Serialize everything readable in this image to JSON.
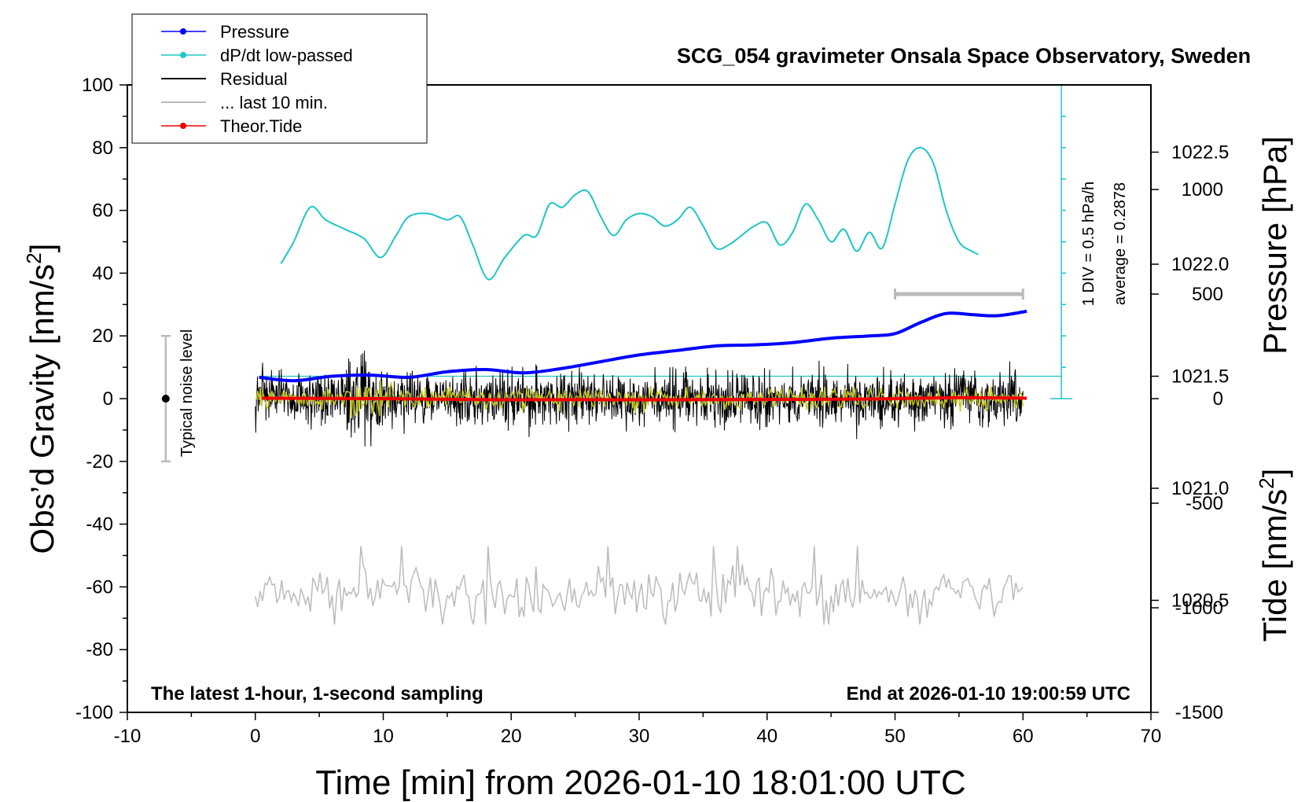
{
  "chart_data": {
    "type": "line",
    "title": "SCG_054 gravimeter Onsala Space Observatory, Sweden",
    "xlabel": "Time [min] from 2026-01-10 18:01:00 UTC",
    "ylabel_left_main": "Obs’d Gravity [nm/s",
    "ylabel_left_sup": "2",
    "ylabel_left_close": "]",
    "ylabel_right_pressure": "Pressure [hPa]",
    "ylabel_right_tide_main": "Tide [nm/s",
    "ylabel_right_tide_sup": "2",
    "ylabel_right_tide_close": "]",
    "xlim": [
      -10,
      70
    ],
    "ylim_left": [
      -100,
      100
    ],
    "ylim_pressure": [
      1020.0,
      1022.8
    ],
    "ylim_tide": [
      -1500,
      1500
    ],
    "x_ticks": [
      -10,
      0,
      10,
      20,
      30,
      40,
      50,
      60,
      70
    ],
    "x_tick_labels": [
      "-10",
      "0",
      "10",
      "20",
      "30",
      "40",
      "50",
      "60",
      "70"
    ],
    "y_left_ticks": [
      -100,
      -80,
      -60,
      -40,
      -20,
      0,
      20,
      40,
      60,
      80,
      100
    ],
    "y_left_tick_labels": [
      "-100",
      "-80",
      "-60",
      "-40",
      "-20",
      "0",
      "20",
      "40",
      "60",
      "80",
      "100"
    ],
    "y_pressure_ticks": [
      1020.5,
      1021.0,
      1021.5,
      1022.0,
      1022.5
    ],
    "y_pressure_tick_labels": [
      "1020.5",
      "1021.0",
      "1021.5",
      "1022.0",
      "1022.5"
    ],
    "y_tide_ticks": [
      -1500,
      -1000,
      -500,
      0,
      500,
      1000
    ],
    "y_tide_tick_labels": [
      "-1500",
      "-1000",
      "-500",
      "0",
      "500",
      "1000"
    ],
    "legend": [
      {
        "name": "Pressure",
        "color": "#0000ff",
        "marker": true
      },
      {
        "name": "dP/dt low-passed",
        "color": "#20c5c5",
        "marker": true
      },
      {
        "name": "Residual",
        "color": "#000000",
        "marker": false
      },
      {
        "name": "... last 10 min.",
        "color": "#bbbbbb",
        "marker": false
      },
      {
        "name": "Theor.Tide",
        "color": "#ee0000",
        "marker": true
      }
    ],
    "annotations": {
      "bottom_left": "The latest 1-hour, 1-second sampling",
      "bottom_right": "End at 2026-01-10 19:00:59 UTC",
      "scale_div": "1 DIV = 0.5 hPa/h",
      "scale_avg": "average = 0.2878",
      "noise_label": "Typical noise level"
    },
    "noise_bar": {
      "x": -7,
      "center": 0,
      "low": -20,
      "high": 20
    },
    "last10_bar": {
      "x_start": 50,
      "x_end": 60,
      "tide": 500
    },
    "dpdt_scale_axis": {
      "x": 63,
      "zero": 0,
      "top": 100,
      "div_count": 10
    },
    "series": [
      {
        "name": "Pressure",
        "axis": "pressure",
        "color": "#0000ff",
        "x": [
          0.3,
          3,
          6,
          9,
          12,
          15,
          18,
          21,
          24,
          27,
          30,
          33,
          36,
          39,
          42,
          45,
          48,
          50,
          52,
          54,
          56,
          58,
          60.3
        ],
        "values": [
          1021.495,
          1021.48,
          1021.5,
          1021.505,
          1021.495,
          1021.52,
          1021.53,
          1021.515,
          1021.535,
          1021.565,
          1021.595,
          1021.615,
          1021.635,
          1021.64,
          1021.65,
          1021.67,
          1021.68,
          1021.69,
          1021.74,
          1021.78,
          1021.775,
          1021.77,
          1021.79
        ]
      },
      {
        "name": "dP/dt low-passed",
        "axis": "left",
        "color": "#20c5c5",
        "x": [
          2,
          3,
          4.3,
          5.5,
          7,
          8.5,
          9.8,
          11,
          12,
          13.5,
          15,
          16,
          17,
          18.2,
          19.5,
          21,
          22,
          23,
          24,
          25,
          26,
          27,
          28,
          29,
          30,
          31,
          32,
          33,
          34,
          35,
          36,
          37,
          38,
          39,
          40,
          41,
          42,
          43,
          44,
          45,
          46,
          47,
          48,
          49,
          50,
          51,
          52,
          53,
          54,
          55,
          56,
          56.5
        ],
        "values": [
          43,
          50,
          61,
          57,
          54,
          51,
          45,
          52,
          58,
          59,
          57,
          58,
          49,
          38,
          45,
          52,
          52,
          62,
          61,
          65,
          66,
          58,
          52,
          57,
          59,
          58,
          55,
          57,
          61,
          55,
          48,
          49,
          52,
          55,
          56,
          49,
          53,
          62,
          57,
          50,
          54,
          47,
          53,
          48,
          62,
          76,
          80,
          75,
          60,
          50,
          47,
          46
        ]
      },
      {
        "name": "Residual",
        "axis": "left",
        "color": "#000000",
        "x_range": [
          0,
          60
        ],
        "amplitude": 9
      },
      {
        "name": "Residual (smoothed)",
        "axis": "left",
        "color": "#c8c81e",
        "x_range": [
          0,
          60
        ],
        "amplitude": 3
      },
      {
        "name": "Theor.Tide",
        "axis": "tide",
        "color": "#ee0000",
        "x": [
          0.5,
          10,
          18,
          25,
          35,
          45,
          50,
          55,
          60.3
        ],
        "values": [
          2,
          0,
          -5,
          -5,
          -5,
          -3,
          0,
          5,
          2
        ]
      },
      {
        "name": "... last 10 min.",
        "axis": "left",
        "color": "#bbbbbb",
        "x_range": [
          0,
          60
        ],
        "center": -62,
        "amplitude": 5
      }
    ]
  }
}
